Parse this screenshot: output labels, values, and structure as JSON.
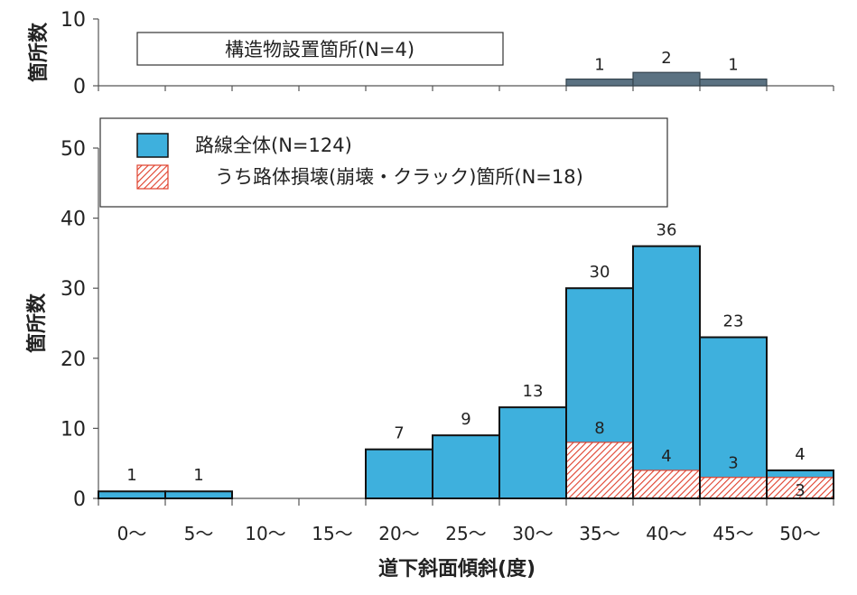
{
  "chart_data": [
    {
      "type": "bar",
      "ylabel": "箇所数",
      "ylim": [
        0,
        10
      ],
      "yticks": [
        "0",
        "10"
      ],
      "legend": "構造物設置箇所(N=4)",
      "categories": [
        "0～",
        "5～",
        "10～",
        "15～",
        "20～",
        "25～",
        "30～",
        "35～",
        "40～",
        "45～",
        "50～"
      ],
      "values": [
        0,
        0,
        0,
        0,
        0,
        0,
        0,
        1,
        2,
        1,
        0
      ],
      "data_labels": [
        "",
        "",
        "",
        "",
        "",
        "",
        "",
        "1",
        "2",
        "1",
        ""
      ],
      "color": "#5b7282"
    },
    {
      "type": "bar",
      "xlabel": "道下斜面傾斜(度)",
      "ylabel": "箇所数",
      "ylim": [
        0,
        50
      ],
      "yticks": [
        "0",
        "10",
        "20",
        "30",
        "40",
        "50"
      ],
      "categories": [
        "0～",
        "5～",
        "10～",
        "15～",
        "20～",
        "25～",
        "30～",
        "35～",
        "40～",
        "45～",
        "50～"
      ],
      "legend_position": "top-left",
      "series": [
        {
          "name": "路線全体(N=124)",
          "color": "#3eb0dd",
          "values": [
            1,
            1,
            0,
            0,
            7,
            9,
            13,
            30,
            36,
            23,
            4
          ],
          "data_labels": [
            "1",
            "1",
            "",
            "",
            "7",
            "9",
            "13",
            "30",
            "36",
            "23",
            "4"
          ]
        },
        {
          "name": "うち路体損壊(崩壊・クラック)箇所(N=18)",
          "color": "#e0402c",
          "pattern": "hatched",
          "values": [
            0,
            0,
            0,
            0,
            0,
            0,
            0,
            8,
            4,
            3,
            3
          ],
          "data_labels": [
            "",
            "",
            "",
            "",
            "",
            "",
            "",
            "8",
            "4",
            "3",
            "3"
          ]
        }
      ]
    }
  ]
}
